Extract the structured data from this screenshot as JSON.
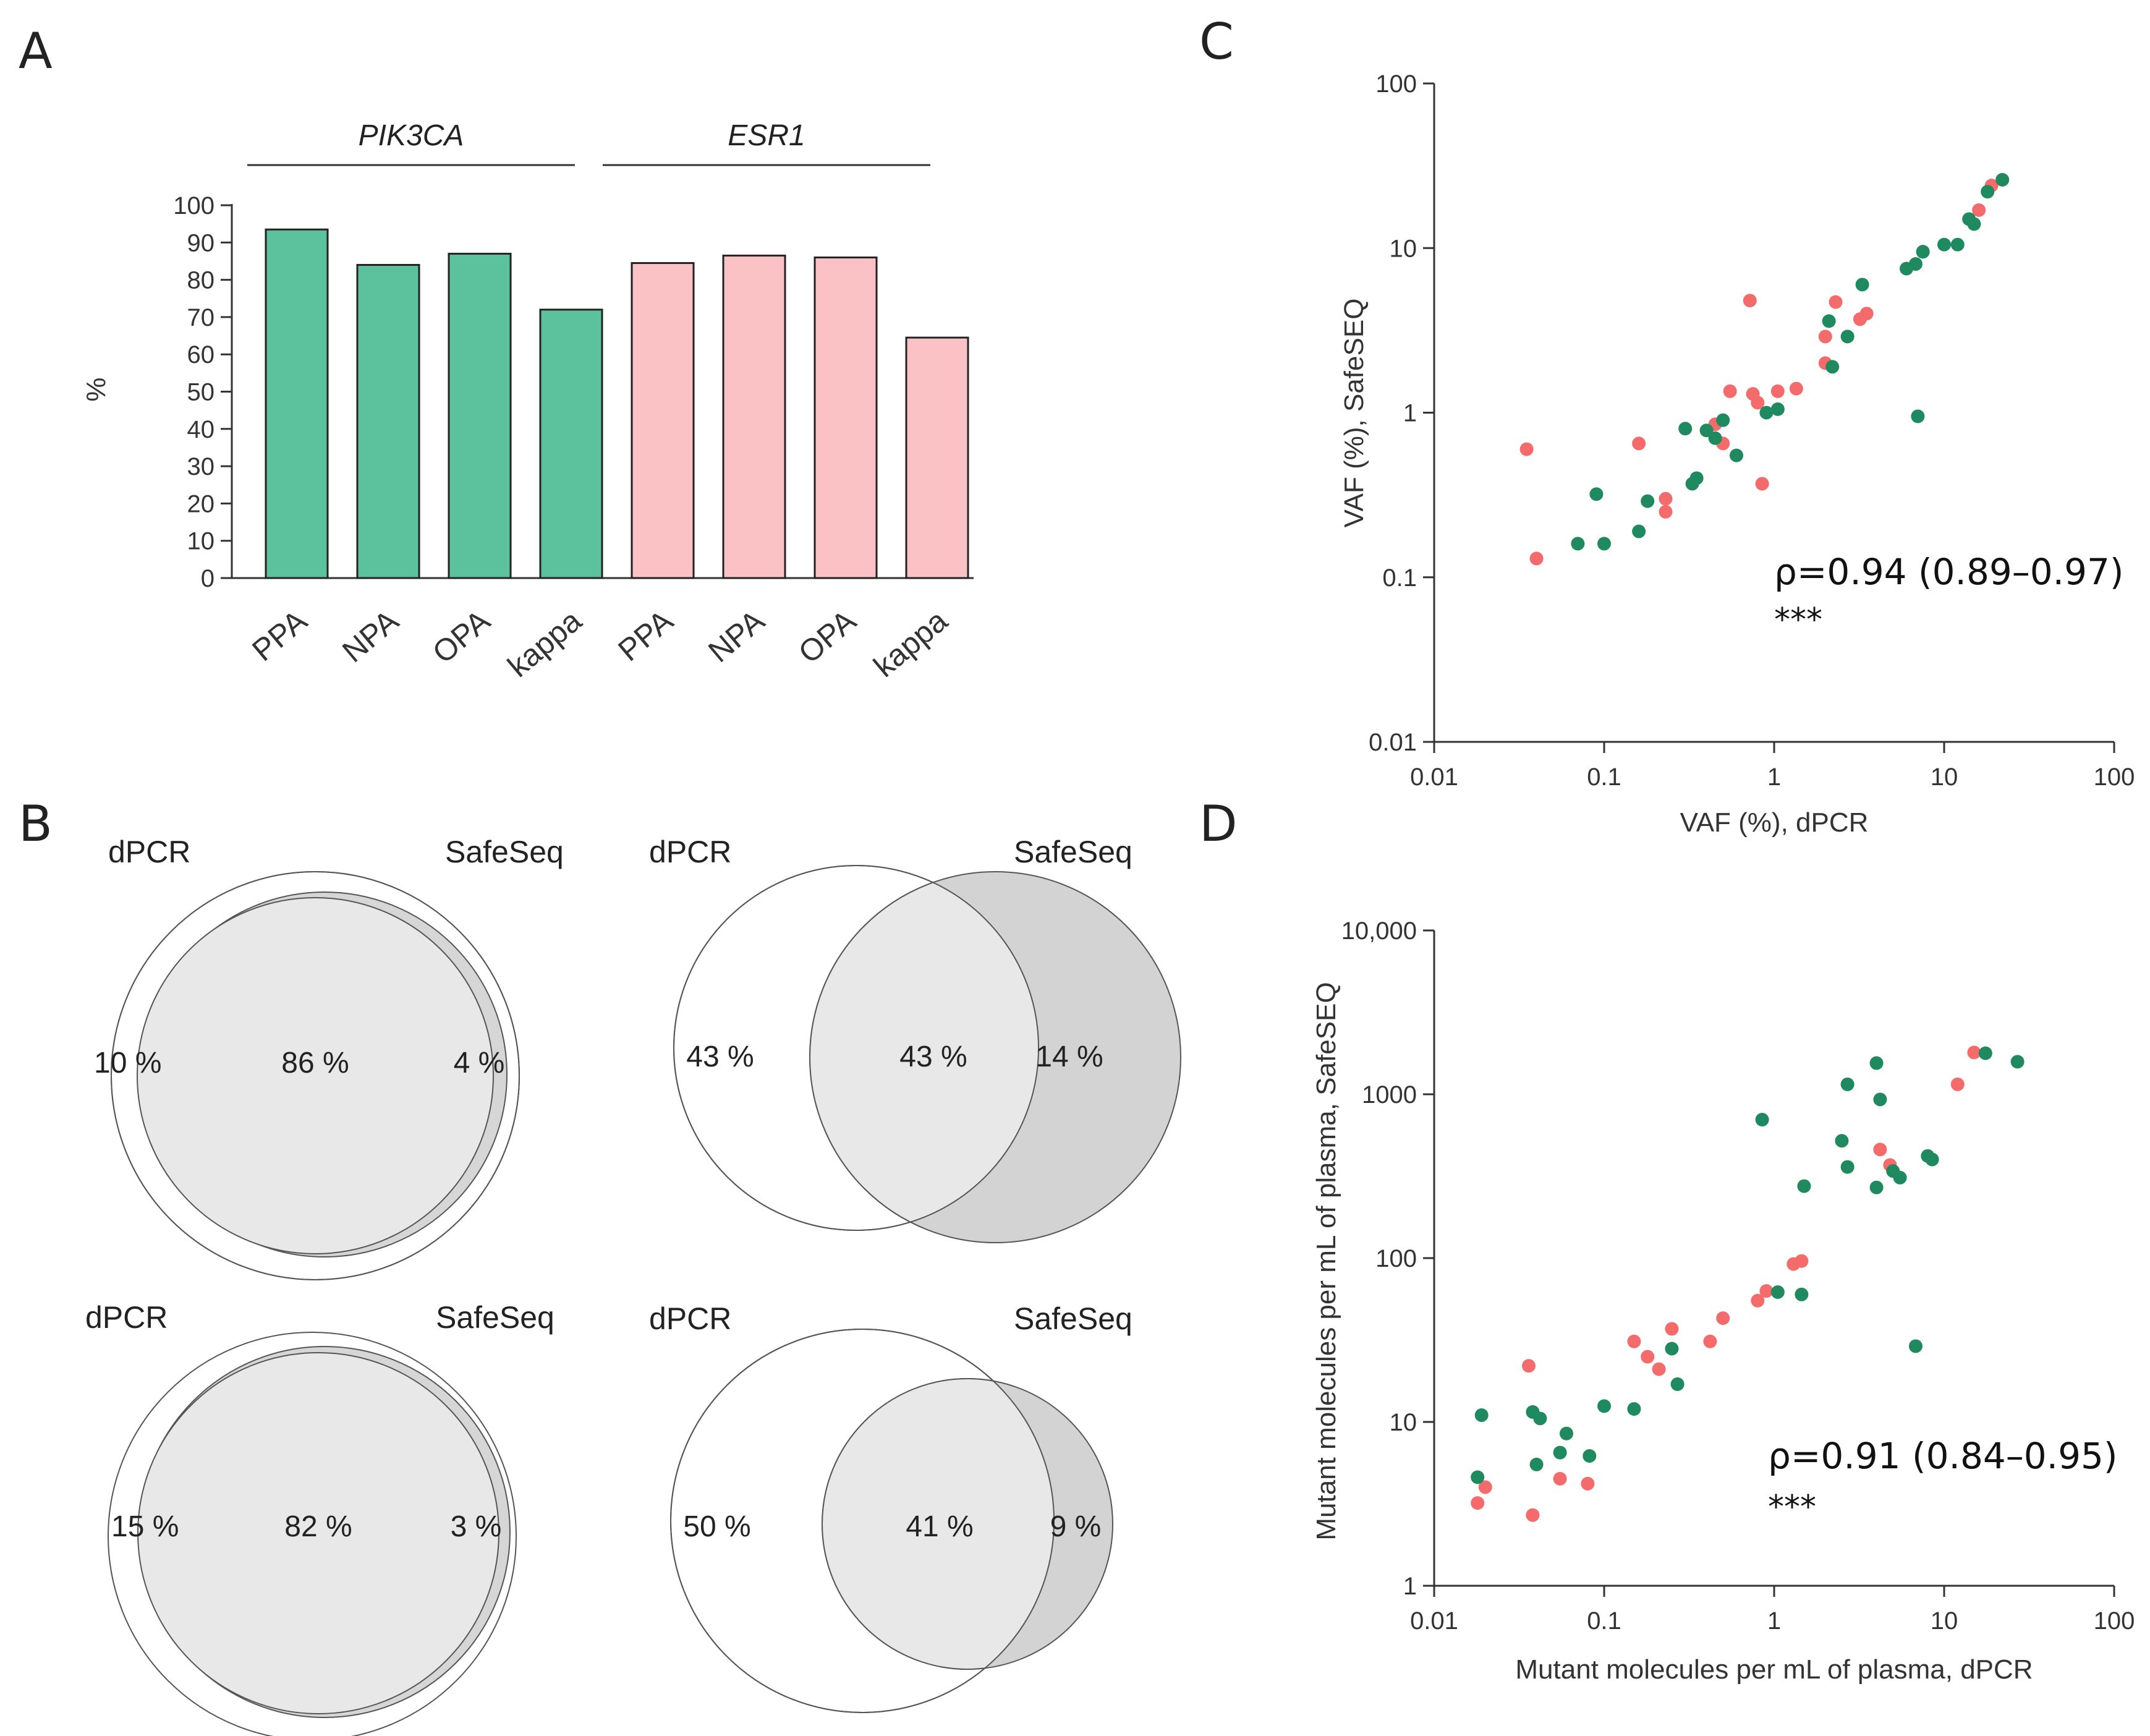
{
  "panels": {
    "a": "A",
    "b": "B",
    "c": "C",
    "d": "D"
  },
  "chart_data": [
    {
      "panel": "A",
      "type": "bar",
      "ylabel": "%",
      "ylim": [
        0,
        100
      ],
      "yticks": [
        "0",
        "10",
        "20",
        "30",
        "40",
        "50",
        "60",
        "70",
        "80",
        "90",
        "100"
      ],
      "groups": [
        {
          "name": "PIK3CA",
          "color": "#5cc29e",
          "categories": [
            "PPA",
            "NPA",
            "OPA",
            "kappa"
          ],
          "values": [
            93.5,
            84,
            87,
            72
          ]
        },
        {
          "name": "ESR1",
          "color": "#fbc2c5",
          "categories": [
            "PPA",
            "NPA",
            "OPA",
            "kappa"
          ],
          "values": [
            84.5,
            86.5,
            86,
            64.5
          ]
        }
      ]
    },
    {
      "panel": "C",
      "type": "scatter",
      "xscale": "log",
      "yscale": "log",
      "xlim": [
        0.01,
        100
      ],
      "ylim": [
        0.01,
        100
      ],
      "xticks": [
        "0.01",
        "0.1",
        "1",
        "10",
        "100"
      ],
      "yticks": [
        "0.01",
        "0.1",
        "1",
        "10",
        "100"
      ],
      "xlabel": "VAF (%), dPCR",
      "ylabel": "VAF (%), SafeSEQ",
      "annotation": "ρ=0.94 (0.89–0.97)",
      "significance": "***",
      "series": [
        {
          "name": "ESR1",
          "color": "#f46b6b",
          "points": [
            [
              0.035,
              0.6
            ],
            [
              0.04,
              0.13
            ],
            [
              0.16,
              0.65
            ],
            [
              0.23,
              0.3
            ],
            [
              0.23,
              0.25
            ],
            [
              0.45,
              0.85
            ],
            [
              0.5,
              0.65
            ],
            [
              0.55,
              1.35
            ],
            [
              0.75,
              1.3
            ],
            [
              0.8,
              1.15
            ],
            [
              0.85,
              0.37
            ],
            [
              1.05,
              1.35
            ],
            [
              1.35,
              1.4
            ],
            [
              0.72,
              4.8
            ],
            [
              2.0,
              2.9
            ],
            [
              2.3,
              4.7
            ],
            [
              3.2,
              3.7
            ],
            [
              3.5,
              4.0
            ],
            [
              2.0,
              2.0
            ],
            [
              7.5,
              9.5
            ],
            [
              16,
              17
            ],
            [
              19,
              24
            ]
          ]
        },
        {
          "name": "PIK3CA",
          "color": "#1f8a5f",
          "points": [
            [
              0.07,
              0.16
            ],
            [
              0.09,
              0.32
            ],
            [
              0.1,
              0.16
            ],
            [
              0.16,
              0.19
            ],
            [
              0.18,
              0.29
            ],
            [
              0.3,
              0.8
            ],
            [
              0.33,
              0.37
            ],
            [
              0.35,
              0.4
            ],
            [
              0.4,
              0.78
            ],
            [
              0.45,
              0.7
            ],
            [
              0.5,
              0.9
            ],
            [
              0.6,
              0.55
            ],
            [
              0.9,
              1.0
            ],
            [
              1.05,
              1.05
            ],
            [
              2.1,
              3.6
            ],
            [
              2.2,
              1.9
            ],
            [
              2.7,
              2.9
            ],
            [
              3.3,
              6.0
            ],
            [
              6.0,
              7.5
            ],
            [
              6.8,
              8.0
            ],
            [
              7.5,
              9.5
            ],
            [
              7.0,
              0.95
            ],
            [
              10,
              10.5
            ],
            [
              12,
              10.5
            ],
            [
              14,
              15
            ],
            [
              15,
              14
            ],
            [
              18,
              22
            ],
            [
              22,
              26
            ]
          ]
        }
      ]
    },
    {
      "panel": "D",
      "type": "scatter",
      "xscale": "log",
      "yscale": "log",
      "xlim": [
        0.01,
        100
      ],
      "ylim": [
        1,
        10000
      ],
      "xticks": [
        "0.01",
        "0.1",
        "1",
        "10",
        "100"
      ],
      "yticks": [
        "1",
        "10",
        "100",
        "1000",
        "10,000"
      ],
      "xlabel": "Mutant molecules per mL of plasma, dPCR",
      "ylabel": "Mutant molecules per mL of plasma, SafeSEQ",
      "annotation": "ρ=0.91 (0.84–0.95)",
      "significance": "***",
      "series": [
        {
          "name": "ESR1",
          "color": "#f46b6b",
          "points": [
            [
              0.018,
              3.2
            ],
            [
              0.02,
              4.0
            ],
            [
              0.036,
              22
            ],
            [
              0.038,
              2.7
            ],
            [
              0.055,
              4.5
            ],
            [
              0.08,
              4.2
            ],
            [
              0.15,
              31
            ],
            [
              0.18,
              25
            ],
            [
              0.21,
              21
            ],
            [
              0.25,
              37
            ],
            [
              0.42,
              31
            ],
            [
              0.5,
              43
            ],
            [
              0.8,
              55
            ],
            [
              0.9,
              63
            ],
            [
              1.3,
              92
            ],
            [
              1.45,
              96
            ],
            [
              4.2,
              460
            ],
            [
              4.8,
              370
            ],
            [
              12,
              1150
            ],
            [
              15,
              1800
            ]
          ]
        },
        {
          "name": "PIK3CA",
          "color": "#1f8a5f",
          "points": [
            [
              0.018,
              4.6
            ],
            [
              0.019,
              11
            ],
            [
              0.038,
              11.5
            ],
            [
              0.04,
              5.5
            ],
            [
              0.042,
              10.5
            ],
            [
              0.055,
              6.5
            ],
            [
              0.06,
              8.5
            ],
            [
              0.082,
              6.2
            ],
            [
              0.1,
              12.5
            ],
            [
              0.15,
              12
            ],
            [
              0.25,
              28
            ],
            [
              0.27,
              17
            ],
            [
              0.85,
              700
            ],
            [
              1.05,
              62
            ],
            [
              1.45,
              60
            ],
            [
              1.5,
              275
            ],
            [
              2.5,
              520
            ],
            [
              2.7,
              1150
            ],
            [
              2.7,
              360
            ],
            [
              4.0,
              270
            ],
            [
              4.0,
              1550
            ],
            [
              4.2,
              930
            ],
            [
              5.0,
              340
            ],
            [
              5.5,
              310
            ],
            [
              6.8,
              29
            ],
            [
              8.0,
              420
            ],
            [
              8.5,
              400
            ],
            [
              17.5,
              1780
            ],
            [
              27,
              1580
            ]
          ]
        }
      ]
    }
  ],
  "venns": [
    {
      "dpcr_label": "dPCR",
      "safeseq_label": "SafeSeq",
      "left_pct": "10 %",
      "center_pct": "86 %",
      "right_pct": "4 %"
    },
    {
      "dpcr_label": "dPCR",
      "safeseq_label": "SafeSeq",
      "left_pct": "43 %",
      "center_pct": "43 %",
      "right_pct": "14 %"
    },
    {
      "dpcr_label": "dPCR",
      "safeseq_label": "SafeSeq",
      "left_pct": "15 %",
      "center_pct": "82 %",
      "right_pct": "3 %"
    },
    {
      "dpcr_label": "dPCR",
      "safeseq_label": "SafeSeq",
      "left_pct": "50 %",
      "center_pct": "41 %",
      "right_pct": "9 %"
    }
  ]
}
